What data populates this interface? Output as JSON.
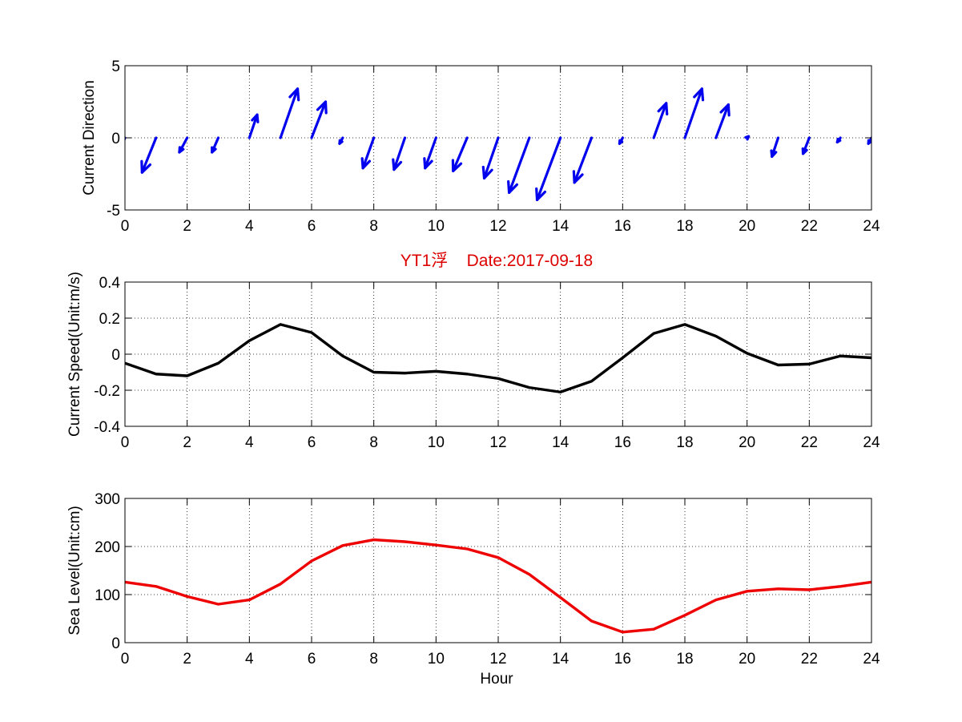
{
  "figure": {
    "center_title": "YT1浮    Date:2017-09-18",
    "title_color": "#dd0000",
    "xlabel": "Hour"
  },
  "chart_data": [
    {
      "type": "quiver",
      "ylabel": "Current Direction",
      "xlim": [
        0,
        24
      ],
      "ylim": [
        -5,
        5
      ],
      "xticks": [
        0,
        2,
        4,
        6,
        8,
        10,
        12,
        14,
        16,
        18,
        20,
        22,
        24
      ],
      "yticks": [
        -5,
        0,
        5
      ],
      "grid": true,
      "color": "#0000ee",
      "x": [
        0,
        1,
        2,
        3,
        4,
        5,
        6,
        7,
        8,
        9,
        10,
        11,
        12,
        13,
        14,
        15,
        16,
        17,
        18,
        19,
        20,
        21,
        22,
        23,
        24
      ],
      "u": [
        -0.35,
        -0.45,
        -0.25,
        -0.2,
        0.25,
        0.55,
        0.45,
        -0.1,
        -0.35,
        -0.35,
        -0.35,
        -0.45,
        -0.45,
        -0.65,
        -0.75,
        -0.55,
        -0.1,
        0.4,
        0.55,
        0.4,
        0.05,
        -0.2,
        -0.2,
        -0.1,
        -0.1
      ],
      "v": [
        -2.2,
        -2.4,
        -1.0,
        -1.0,
        1.6,
        3.4,
        2.5,
        -0.4,
        -2.1,
        -2.2,
        -2.1,
        -2.3,
        -2.8,
        -3.8,
        -4.3,
        -3.1,
        -0.4,
        2.4,
        3.4,
        2.3,
        0.1,
        -1.3,
        -1.1,
        -0.3,
        -0.4
      ]
    },
    {
      "type": "line",
      "ylabel": "Current Speed(Unit:m/s)",
      "xlim": [
        0,
        24
      ],
      "ylim": [
        -0.4,
        0.4
      ],
      "xticks": [
        0,
        2,
        4,
        6,
        8,
        10,
        12,
        14,
        16,
        18,
        20,
        22,
        24
      ],
      "yticks": [
        -0.4,
        -0.2,
        0,
        0.2,
        0.4
      ],
      "grid": true,
      "color": "#000000",
      "x": [
        0,
        1,
        2,
        3,
        4,
        5,
        6,
        7,
        8,
        9,
        10,
        11,
        12,
        13,
        14,
        15,
        16,
        17,
        18,
        19,
        20,
        21,
        22,
        23,
        24
      ],
      "y": [
        -0.05,
        -0.11,
        -0.12,
        -0.05,
        0.075,
        0.165,
        0.12,
        -0.01,
        -0.1,
        -0.105,
        -0.095,
        -0.11,
        -0.135,
        -0.185,
        -0.21,
        -0.15,
        -0.02,
        0.115,
        0.165,
        0.1,
        0.005,
        -0.06,
        -0.055,
        -0.01,
        -0.02
      ]
    },
    {
      "type": "line",
      "ylabel": "Sea Level(Unit:cm)",
      "xlim": [
        0,
        24
      ],
      "ylim": [
        0,
        300
      ],
      "xticks": [
        0,
        2,
        4,
        6,
        8,
        10,
        12,
        14,
        16,
        18,
        20,
        22,
        24
      ],
      "yticks": [
        0,
        100,
        200,
        300
      ],
      "grid": true,
      "color": "#ee0000",
      "x": [
        0,
        1,
        2,
        3,
        4,
        5,
        6,
        7,
        8,
        9,
        10,
        11,
        12,
        13,
        14,
        15,
        16,
        17,
        18,
        19,
        20,
        21,
        22,
        23,
        24
      ],
      "y": [
        126,
        117,
        96,
        80,
        89,
        122,
        170,
        202,
        214,
        210,
        203,
        195,
        177,
        142,
        94,
        45,
        22,
        28,
        57,
        89,
        107,
        112,
        110,
        117,
        126
      ]
    }
  ]
}
